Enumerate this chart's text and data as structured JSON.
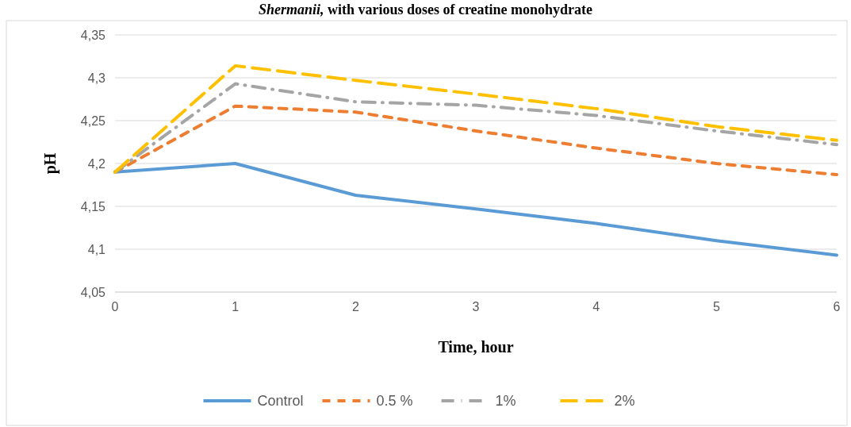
{
  "chart_data": {
    "type": "line",
    "title": "Shermanii, with various doses of creatine monohydrate",
    "xlabel": "Time, hour",
    "ylabel": "pH",
    "x": [
      0,
      1,
      2,
      3,
      4,
      5,
      6
    ],
    "xlim": [
      0,
      6
    ],
    "xticks": [
      0,
      1,
      2,
      3,
      4,
      5,
      6
    ],
    "ylim": [
      4.05,
      4.35
    ],
    "yticks": [
      {
        "value": 4.05,
        "label": "4,05"
      },
      {
        "value": 4.1,
        "label": "4,1"
      },
      {
        "value": 4.15,
        "label": "4,15"
      },
      {
        "value": 4.2,
        "label": "4,2"
      },
      {
        "value": 4.25,
        "label": "4,25"
      },
      {
        "value": 4.3,
        "label": "4,3"
      },
      {
        "value": 4.35,
        "label": "4,35"
      }
    ],
    "grid": "y",
    "legend": "bottom",
    "marker": "none",
    "series": [
      {
        "name": "Control",
        "color": "#5b9bd5",
        "line_style": "solid",
        "values": [
          4.19,
          4.2,
          4.163,
          4.147,
          4.13,
          4.11,
          4.093
        ]
      },
      {
        "name": "0.5 %",
        "color": "#ed7d31",
        "line_style": "dashed",
        "values": [
          4.19,
          4.267,
          4.26,
          4.238,
          4.218,
          4.2,
          4.187
        ]
      },
      {
        "name": "1%",
        "color": "#a5a5a5",
        "line_style": "dashdot",
        "values": [
          4.19,
          4.293,
          4.272,
          4.268,
          4.256,
          4.238,
          4.222
        ]
      },
      {
        "name": "2%",
        "color": "#ffc000",
        "line_style": "longdash",
        "values": [
          4.19,
          4.314,
          4.297,
          4.281,
          4.264,
          4.243,
          4.227
        ]
      }
    ]
  }
}
